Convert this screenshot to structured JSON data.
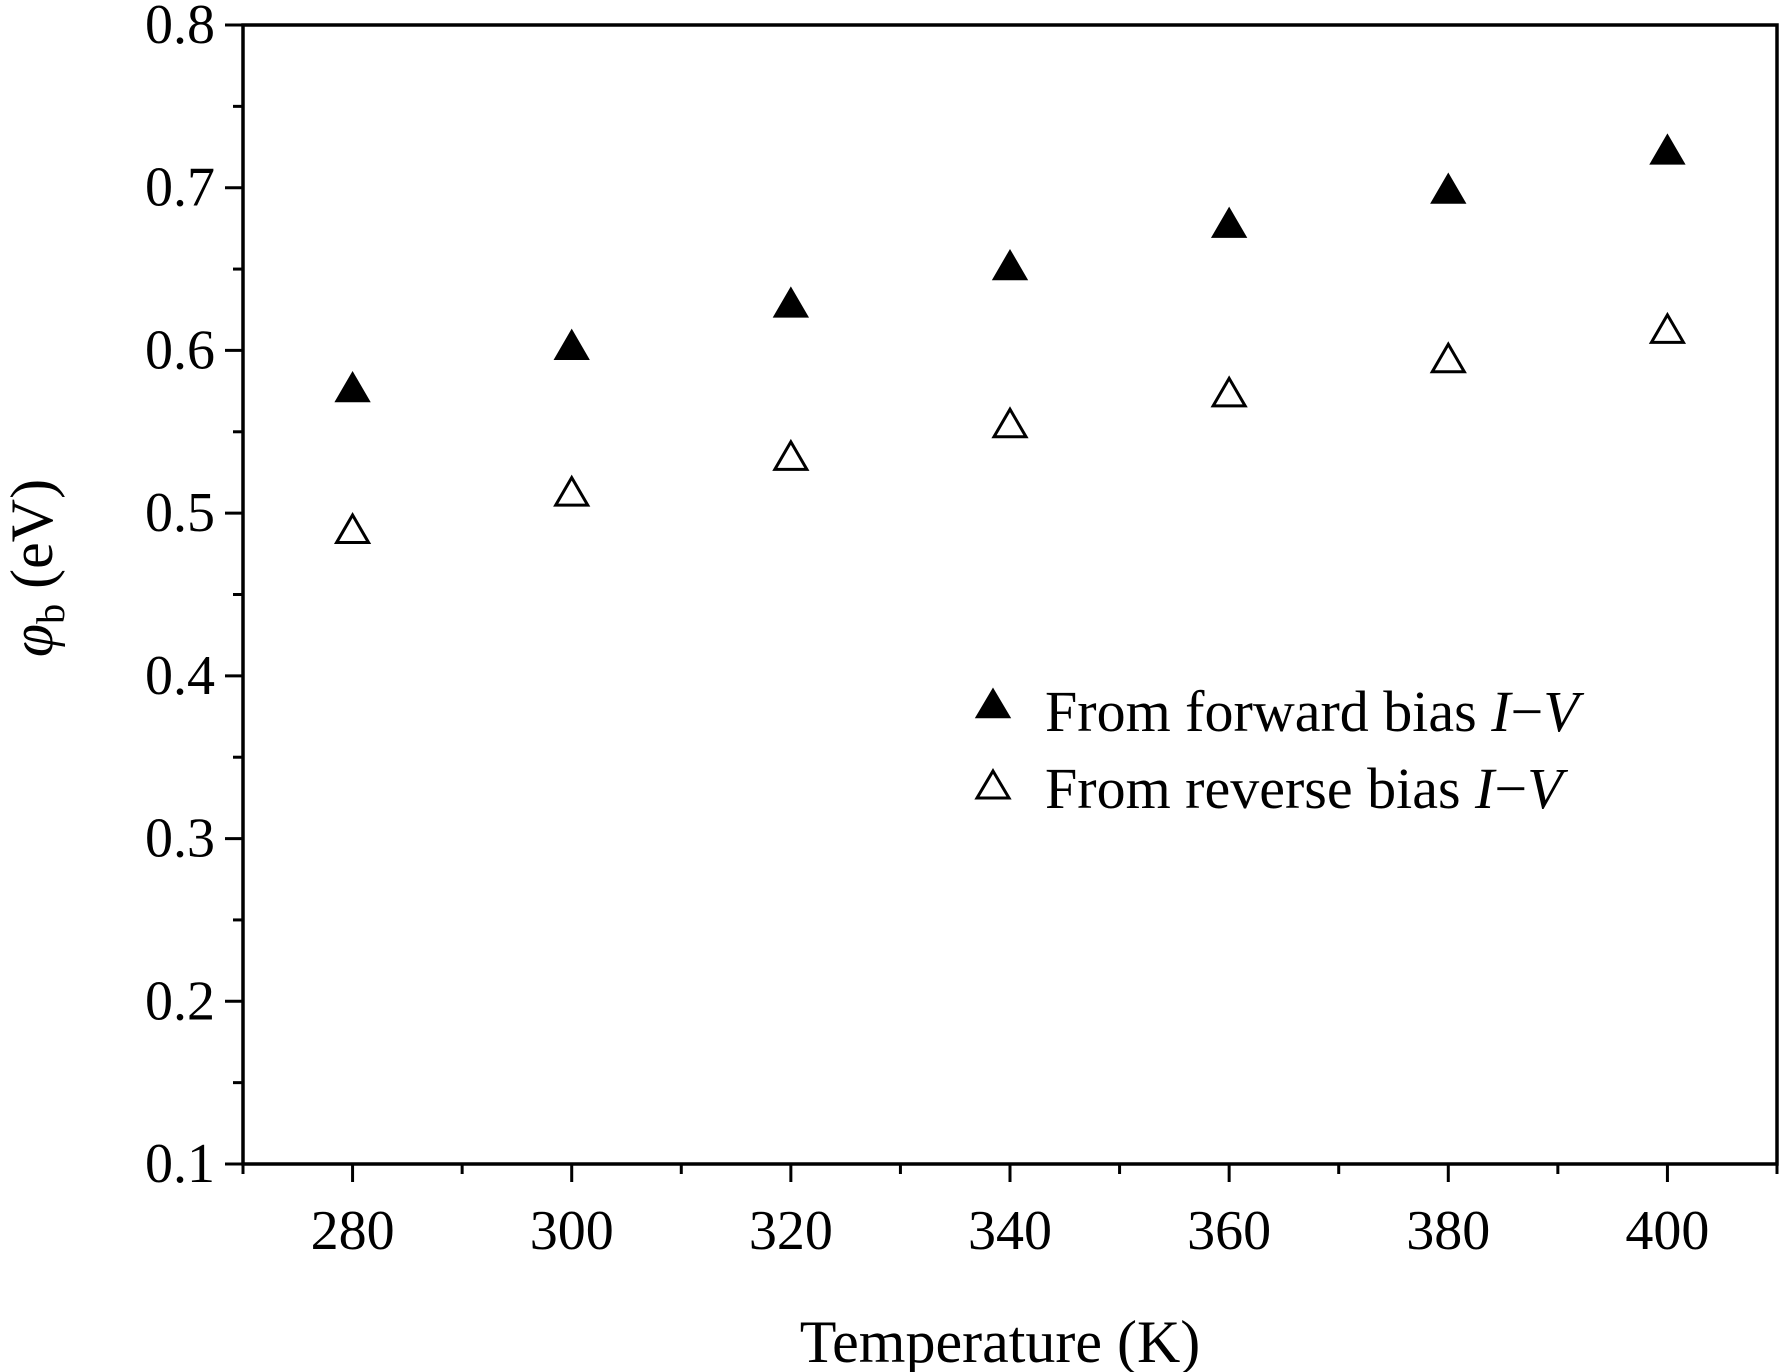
{
  "chart_data": {
    "type": "scatter",
    "title": "",
    "xlabel": "Temperature (K)",
    "ylabel": {
      "symbol": "φ",
      "subscript": "b",
      "unit": "(eV)"
    },
    "xlim": [
      270,
      410
    ],
    "ylim": [
      0.1,
      0.8
    ],
    "x_ticks": [
      280,
      300,
      320,
      340,
      360,
      380,
      400
    ],
    "x_tick_labels": [
      "280",
      "300",
      "320",
      "340",
      "360",
      "380",
      "400"
    ],
    "y_ticks": [
      0.1,
      0.2,
      0.3,
      0.4,
      0.5,
      0.6,
      0.7,
      0.8
    ],
    "y_tick_labels": [
      "0.1",
      "0.2",
      "0.3",
      "0.4",
      "0.5",
      "0.6",
      "0.7",
      "0.8"
    ],
    "grid": false,
    "legend_position": "center-right",
    "series": [
      {
        "name": {
          "text": "From forward bias ",
          "italic_a": "I",
          "dash": "−",
          "italic_b": "V"
        },
        "marker": "filled-triangle",
        "color": "#000000",
        "x": [
          280,
          300,
          320,
          340,
          360,
          380,
          400
        ],
        "y": [
          0.576,
          0.602,
          0.628,
          0.651,
          0.677,
          0.698,
          0.722
        ]
      },
      {
        "name": {
          "text": "From reverse bias ",
          "italic_a": "I",
          "dash": "−",
          "italic_b": "V"
        },
        "marker": "open-triangle",
        "color": "#000000",
        "x": [
          280,
          300,
          320,
          340,
          360,
          380,
          400
        ],
        "y": [
          0.489,
          0.512,
          0.534,
          0.554,
          0.573,
          0.594,
          0.612
        ]
      }
    ]
  }
}
